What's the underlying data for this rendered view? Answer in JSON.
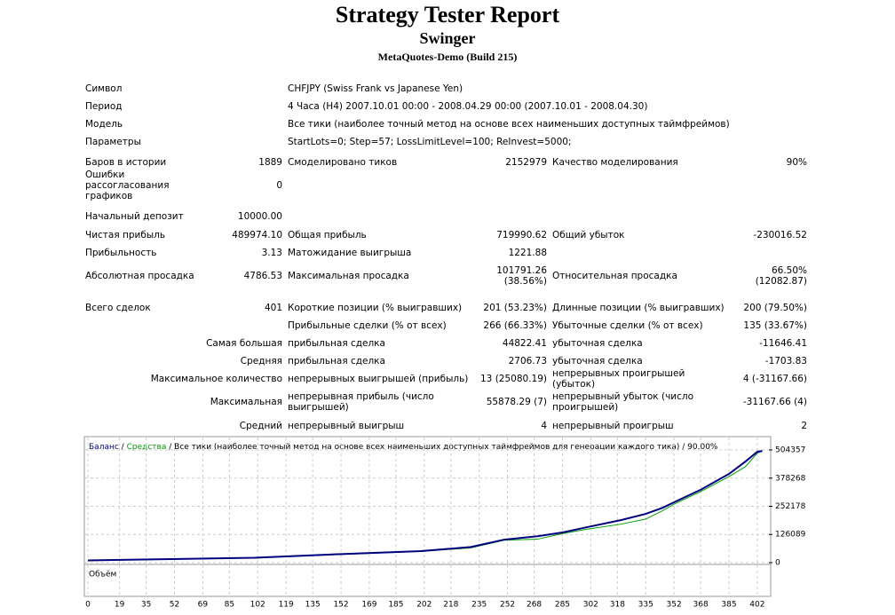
{
  "header": {
    "title": "Strategy Tester Report",
    "subtitle": "Swinger",
    "server": "MetaQuotes-Demo (Build 215)"
  },
  "info": [
    [
      "Символ",
      "CHFJPY (Swiss Frank vs Japanese Yen)"
    ],
    [
      "Период",
      "4 Часа (H4) 2007.10.01 00:00 - 2008.04.29 00:00 (2007.10.01 - 2008.04.30)"
    ],
    [
      "Модель",
      "Все тики (наиболее точный метод на основе всех наименьших доступных таймфреймов)"
    ],
    [
      "Параметры",
      "StartLots=0; Step=57; LossLimitLevel=100; ReInvest=5000;"
    ]
  ],
  "stats": [
    [
      "Баров в истории",
      "1889",
      "Смоделировано тиков",
      "2152979",
      "Качество моделирования",
      "90%"
    ],
    [
      "Ошибки рассогласования графиков",
      "0",
      null,
      null,
      null,
      null
    ],
    [
      "Начальный депозит",
      "10000.00",
      null,
      null,
      null,
      null
    ],
    [
      "Чистая прибыль",
      "489974.10",
      "Общая прибыль",
      "719990.62",
      "Общий убыток",
      "-230016.52"
    ],
    [
      "Прибыльность",
      "3.13",
      "Матожидание выигрыша",
      "1221.88",
      null,
      null
    ],
    [
      "Абсолютная просадка",
      "4786.53",
      "Максимальная просадка",
      "101791.26 (38.56%)",
      "Относительная просадка",
      "66.50% (12082.87)"
    ],
    [
      "Всего сделок",
      "401",
      "Короткие позиции (% выигравших)",
      "201 (53.23%)",
      "Длинные позиции (% выигравших)",
      "200 (79.50%)"
    ],
    [
      null,
      null,
      "Прибыльные сделки (% от всех)",
      "266 (66.33%)",
      "Убыточные сделки (% от всех)",
      "135 (33.67%)"
    ],
    [
      "Самая большая",
      null,
      "прибыльная сделка",
      "44822.41",
      "убыточная сделка",
      "-11646.41"
    ],
    [
      "Средняя",
      null,
      "прибыльная сделка",
      "2706.73",
      "убыточная сделка",
      "-1703.83"
    ],
    [
      "Максимальное количество",
      null,
      "непрерывных выигрышей (прибыль)",
      "13 (25080.19)",
      "непрерывных проигрышей (убыток)",
      "4 (-31167.66)"
    ],
    [
      "Максимальная",
      null,
      "непрерывная прибыль (число выигрышей)",
      "55878.29 (7)",
      "непрерывный убыток (число проигрышей)",
      "-31167.66 (4)"
    ],
    [
      "Средний",
      null,
      "непрерывный выигрыш",
      "4",
      "непрерывный проигрыш",
      "2"
    ]
  ],
  "graph": {
    "legend": {
      "balance": "Баланс",
      "separator": "/",
      "equity": "Средства",
      "description": "/ Все тики (наиболее точный метод на основе всех наименьших доступных таймфреймов для генерации каждого тика) / 90.00%"
    },
    "volume_label": "Объём",
    "x": [
      0,
      50,
      100,
      150,
      200,
      230,
      250,
      270,
      285,
      300,
      320,
      335,
      345,
      352,
      368,
      385,
      395,
      402,
      405
    ],
    "balance": [
      10000,
      16000,
      22000,
      37800,
      51600,
      70000,
      103000,
      118000,
      135000,
      159000,
      190000,
      218000,
      245000,
      270000,
      326000,
      397000,
      453000,
      496000,
      499974
    ],
    "equity": [
      10000,
      15000,
      21000,
      36000,
      50000,
      66000,
      100000,
      105000,
      130000,
      150000,
      172000,
      195000,
      232000,
      262000,
      318000,
      385000,
      430000,
      490000,
      499974
    ],
    "balance_color": "#00007f",
    "equity_color": "#00a000",
    "xlim": [
      0,
      409
    ],
    "ylim": [
      -8000,
      560000
    ],
    "xticks": [
      0,
      19,
      35,
      52,
      69,
      85,
      102,
      119,
      135,
      152,
      169,
      185,
      202,
      218,
      235,
      252,
      268,
      285,
      302,
      318,
      335,
      352,
      368,
      385,
      402
    ],
    "yticks": [
      0,
      126089,
      252178,
      378268,
      504357
    ],
    "grid": true
  }
}
